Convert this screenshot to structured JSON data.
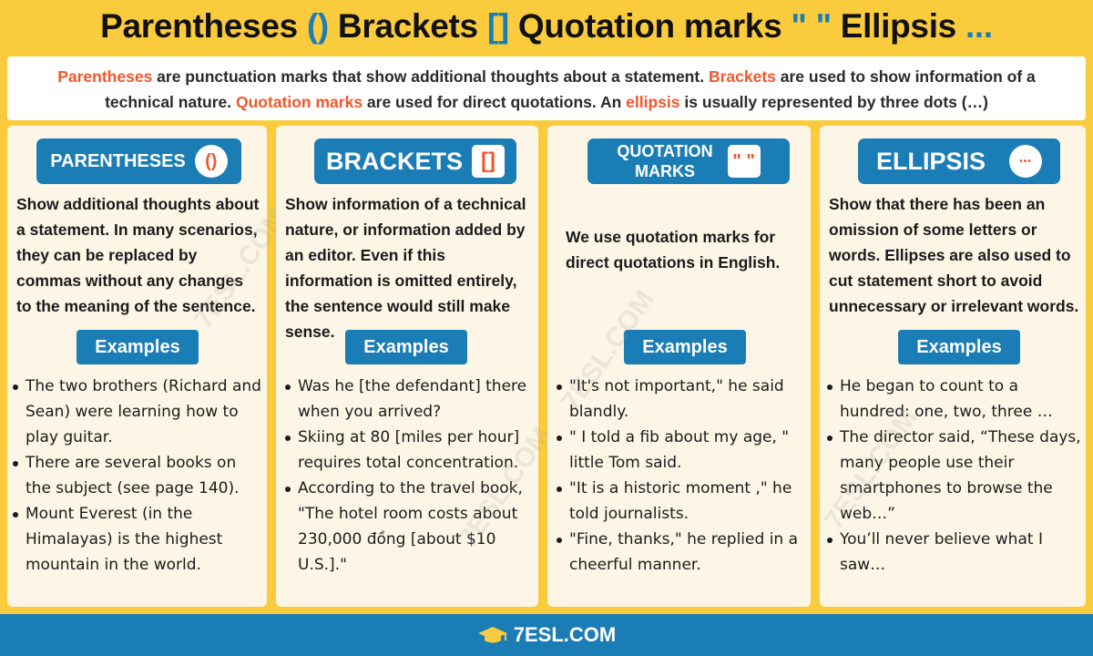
{
  "title": {
    "w1": "Parentheses",
    "s1": "()",
    "w2": "Brackets",
    "s2": "[]",
    "w3": "Quotation marks",
    "s3": "\" \"",
    "w4": "Ellipsis",
    "s4": "..."
  },
  "intro": {
    "t1": "Parentheses",
    "t2": " are punctuation marks that show additional thoughts about a statement. ",
    "t3": "Brackets",
    "t4": " are used to show information of a technical nature. ",
    "t5": "Quotation marks",
    "t6": " are used for direct quotations. An ",
    "t7": "ellipsis",
    "t8": " is usually represented by three dots (…)"
  },
  "cards": [
    {
      "label": "PARENTHESES",
      "icon_text": "()",
      "icon_name": "parentheses-icon",
      "description": "Show additional thoughts about a statement. In many scenarios, they can be replaced by commas without any changes to the meaning of the sentence.",
      "examples_label": "Examples",
      "examples": [
        "The two brothers (Richard and Sean) were learning how to play guitar.",
        "There are several books on the subject (see page 140).",
        "Mount Everest (in the Himalayas) is the highest mountain in the world."
      ]
    },
    {
      "label": "BRACKETS",
      "icon_text": "[]",
      "icon_name": "brackets-icon",
      "description": "Show information of a technical nature, or information added by an editor. Even if this information is omitted entirely, the sentence would still make sense.",
      "examples_label": "Examples",
      "examples": [
        "Was he [the defendant] there when you arrived?",
        "Skiing at 80 [miles per hour] requires total concentration.",
        "According to the travel book, \"The hotel room costs about 230,000 đồng [about $10 U.S.].\""
      ]
    },
    {
      "label_line1": "QUOTATION",
      "label_line2": "MARKS",
      "icon_text": "\" \"",
      "icon_name": "quotation-marks-icon",
      "description": "We use quotation marks for direct quotations in English.",
      "examples_label": "Examples",
      "examples": [
        "\"It's not important,\" he said blandly.",
        "\" I told a fib about my age, \" little Tom said.",
        "\"It is a historic moment ,\" he told journalists.",
        "\"Fine, thanks,\" he replied in a cheerful manner."
      ]
    },
    {
      "label": "ELLIPSIS",
      "icon_text": "•••",
      "icon_name": "ellipsis-icon",
      "description": "Show that there has been an omission of some letters or words. Ellipses are also used to cut statement short to avoid unnecessary or irrelevant words.",
      "examples_label": "Examples",
      "examples": [
        "He began to count to a hundred: one, two, three …",
        "The director said, “These days, many people use their smartphones to browse the web…”",
        "You’ll never believe what I saw…"
      ]
    }
  ],
  "watermark": "7ESL.COM",
  "footer": {
    "logo_text": "7ESL.COM",
    "logo_icon": "graduation-cap-icon"
  },
  "colors": {
    "background": "#fbcb3e",
    "accent_blue": "#1b7db5",
    "highlight_orange": "#f0582d",
    "card_bg": "#fdf6e6"
  }
}
